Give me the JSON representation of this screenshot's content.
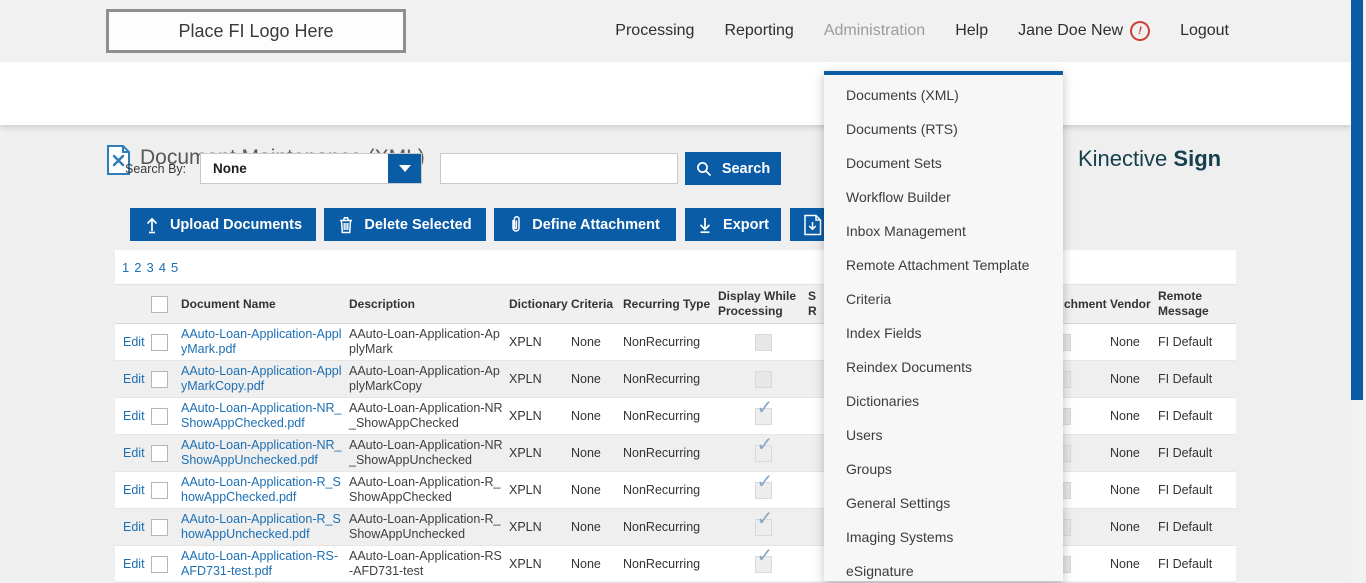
{
  "topnav": {
    "logo_text": "Place FI Logo Here",
    "items": [
      {
        "label": "Processing",
        "dim": false
      },
      {
        "label": "Reporting",
        "dim": false
      },
      {
        "label": "Administration",
        "dim": true
      },
      {
        "label": "Help",
        "dim": false
      }
    ],
    "user_name": "Jane Doe New",
    "alert_glyph": "!",
    "logout_label": "Logout"
  },
  "header": {
    "title": "Document Maintenance (XML)",
    "brand_name": "Kinective",
    "brand_bold": "Sign"
  },
  "search": {
    "label": "Search By:",
    "selected_option": "None",
    "input_value": "",
    "button_label": "Search"
  },
  "toolbar": {
    "upload_label": "Upload Documents",
    "delete_label": "Delete Selected",
    "define_label": "Define Attachment",
    "export_label": "Export"
  },
  "pagination": {
    "pages": [
      "1",
      "2",
      "3",
      "4",
      "5"
    ]
  },
  "admin_menu": {
    "items": [
      "Documents (XML)",
      "Documents (RTS)",
      "Document Sets",
      "Workflow Builder",
      "Inbox Management",
      "Remote Attachment Template",
      "Criteria",
      "Index Fields",
      "Reindex Documents",
      "Dictionaries",
      "Users",
      "Groups",
      "General Settings",
      "Imaging Systems",
      "eSignature"
    ]
  },
  "table": {
    "headers": {
      "document_name": "Document Name",
      "description": "Description",
      "dictionary": "Dictionary",
      "criteria": "Criteria",
      "recurring_type": "Recurring Type",
      "display_while_processing": "Display While Processing",
      "obscured_line1": "S",
      "obscured_line2": "R",
      "attachment_fragment": "chment",
      "vendor": "Vendor",
      "remote_message": "Remote Message"
    },
    "edit_label": "Edit",
    "rows": [
      {
        "name": "AAuto-Loan-Application-ApplyMark.pdf",
        "description": "AAuto-Loan-Application-ApplyMark",
        "dictionary": "XPLN",
        "criteria": "None",
        "recurring": "NonRecurring",
        "display_while_processing": false,
        "vendor": "None",
        "remote_message": "FI Default"
      },
      {
        "name": "AAuto-Loan-Application-ApplyMarkCopy.pdf",
        "description": "AAuto-Loan-Application-ApplyMarkCopy",
        "dictionary": "XPLN",
        "criteria": "None",
        "recurring": "NonRecurring",
        "display_while_processing": false,
        "vendor": "None",
        "remote_message": "FI Default"
      },
      {
        "name": "AAuto-Loan-Application-NR_ShowAppChecked.pdf",
        "description": "AAuto-Loan-Application-NR_ShowAppChecked",
        "dictionary": "XPLN",
        "criteria": "None",
        "recurring": "NonRecurring",
        "display_while_processing": true,
        "vendor": "None",
        "remote_message": "FI Default"
      },
      {
        "name": "AAuto-Loan-Application-NR_ShowAppUnchecked.pdf",
        "description": "AAuto-Loan-Application-NR_ShowAppUnchecked",
        "dictionary": "XPLN",
        "criteria": "None",
        "recurring": "NonRecurring",
        "display_while_processing": true,
        "vendor": "None",
        "remote_message": "FI Default"
      },
      {
        "name": "AAuto-Loan-Application-R_ShowAppChecked.pdf",
        "description": "AAuto-Loan-Application-R_ShowAppChecked",
        "dictionary": "XPLN",
        "criteria": "None",
        "recurring": "NonRecurring",
        "display_while_processing": true,
        "vendor": "None",
        "remote_message": "FI Default"
      },
      {
        "name": "AAuto-Loan-Application-R_ShowAppUnchecked.pdf",
        "description": "AAuto-Loan-Application-R_ShowAppUnchecked",
        "dictionary": "XPLN",
        "criteria": "None",
        "recurring": "NonRecurring",
        "display_while_processing": true,
        "vendor": "None",
        "remote_message": "FI Default"
      },
      {
        "name": "AAuto-Loan-Application-RS-AFD731-test.pdf",
        "description": "AAuto-Loan-Application-RS-AFD731-test",
        "dictionary": "XPLN",
        "criteria": "None",
        "recurring": "NonRecurring",
        "display_while_processing": true,
        "vendor": "None",
        "remote_message": "FI Default"
      }
    ]
  },
  "colors": {
    "accent_blue": "#0b5ca6",
    "link_blue": "#1c6fb4",
    "brand_teal": "#16404d",
    "alert_red": "#cc4038",
    "page_bg": "#efefef",
    "topnav_bg": "#f1f1f1"
  }
}
